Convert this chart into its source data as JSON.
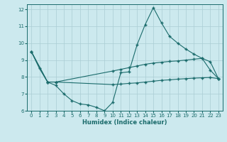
{
  "xlabel": "Humidex (Indice chaleur)",
  "bg_color": "#cce9ee",
  "grid_color": "#aacdd4",
  "line_color": "#1a6b6b",
  "xlim": [
    -0.5,
    23.5
  ],
  "ylim": [
    6,
    12.3
  ],
  "xticks": [
    0,
    1,
    2,
    3,
    4,
    5,
    6,
    7,
    8,
    9,
    10,
    11,
    12,
    13,
    14,
    15,
    16,
    17,
    18,
    19,
    20,
    21,
    22,
    23
  ],
  "yticks": [
    6,
    7,
    8,
    9,
    10,
    11,
    12
  ],
  "line1_x": [
    0,
    1,
    2,
    3,
    4,
    5,
    6,
    7,
    8,
    9,
    10,
    11,
    12,
    13,
    14,
    15,
    16,
    17,
    18,
    19,
    20,
    21,
    22,
    23
  ],
  "line1_y": [
    9.5,
    8.5,
    7.7,
    7.5,
    7.0,
    6.6,
    6.4,
    6.35,
    6.2,
    6.0,
    6.5,
    8.25,
    8.3,
    9.9,
    11.1,
    12.1,
    11.2,
    10.4,
    10.0,
    9.65,
    9.35,
    9.1,
    8.4,
    7.9
  ],
  "line2_x": [
    0,
    2,
    3,
    10,
    11,
    12,
    13,
    14,
    15,
    16,
    17,
    18,
    19,
    20,
    21,
    22,
    23
  ],
  "line2_y": [
    9.5,
    7.7,
    7.7,
    8.35,
    8.45,
    8.55,
    8.65,
    8.75,
    8.82,
    8.87,
    8.92,
    8.95,
    9.0,
    9.05,
    9.1,
    8.9,
    7.9
  ],
  "line3_x": [
    0,
    2,
    3,
    10,
    11,
    12,
    13,
    14,
    15,
    16,
    17,
    18,
    19,
    20,
    21,
    22,
    23
  ],
  "line3_y": [
    9.5,
    7.7,
    7.7,
    7.55,
    7.58,
    7.62,
    7.65,
    7.7,
    7.75,
    7.8,
    7.83,
    7.87,
    7.9,
    7.93,
    7.95,
    7.97,
    7.9
  ]
}
